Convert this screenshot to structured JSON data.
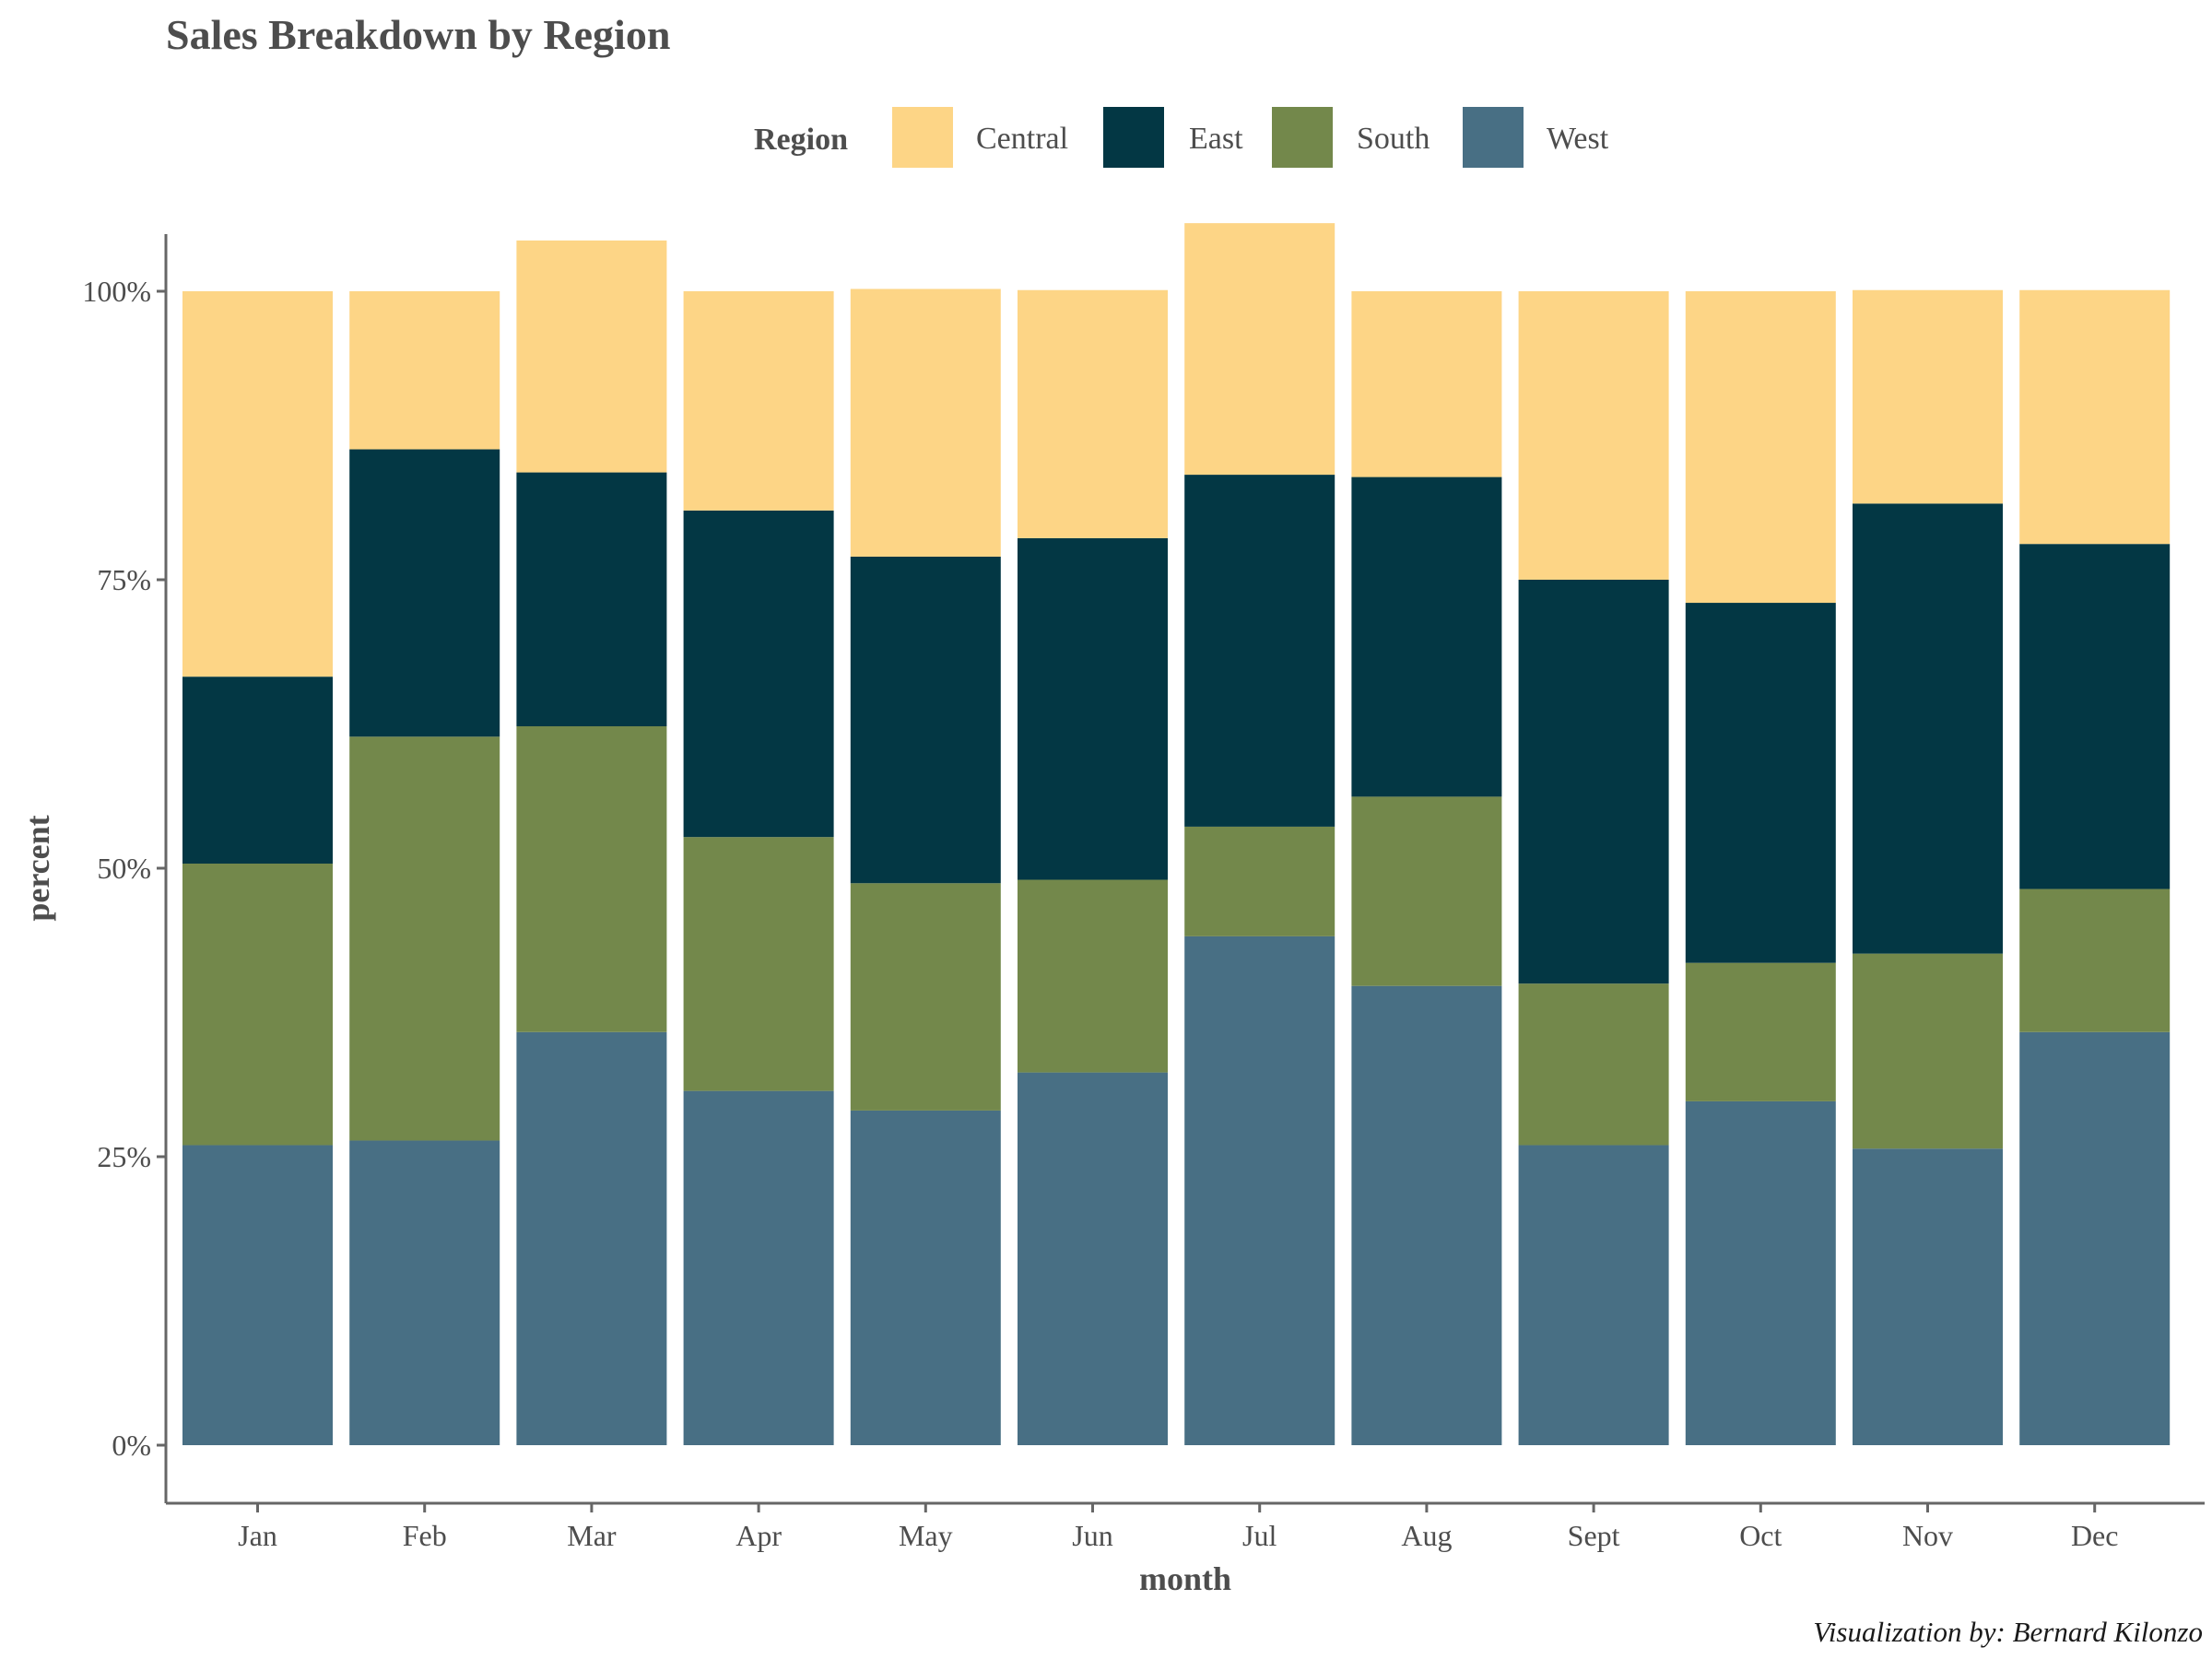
{
  "chart_data": {
    "type": "bar",
    "stacked": true,
    "normalized": true,
    "title": "Sales Breakdown by Region",
    "xlabel": "month",
    "ylabel": "percent",
    "caption": "Visualization by: Bernard Kilonzo",
    "legend": {
      "title": "Region",
      "position": "top"
    },
    "grid": false,
    "ylim": [
      0,
      1
    ],
    "yticks": [
      0,
      0.25,
      0.5,
      0.75,
      1.0
    ],
    "ytick_labels": [
      "0%",
      "25%",
      "50%",
      "75%",
      "100%"
    ],
    "categories": [
      "Jan",
      "Feb",
      "Mar",
      "Apr",
      "May",
      "Jun",
      "Jul",
      "Aug",
      "Sept",
      "Oct",
      "Nov",
      "Dec"
    ],
    "series": [
      {
        "name": "Central",
        "color": "#FDD586",
        "values": [
          0.334,
          0.137,
          0.201,
          0.19,
          0.232,
          0.215,
          0.218,
          0.161,
          0.25,
          0.27,
          0.185,
          0.22
        ]
      },
      {
        "name": "East",
        "color": "#033744",
        "values": [
          0.162,
          0.249,
          0.22,
          0.283,
          0.283,
          0.296,
          0.305,
          0.277,
          0.35,
          0.312,
          0.39,
          0.299
        ]
      },
      {
        "name": "South",
        "color": "#73884B",
        "values": [
          0.244,
          0.35,
          0.265,
          0.22,
          0.197,
          0.167,
          0.095,
          0.164,
          0.14,
          0.12,
          0.169,
          0.124
        ]
      },
      {
        "name": "West",
        "color": "#486F84",
        "values": [
          0.26,
          0.264,
          0.358,
          0.307,
          0.29,
          0.323,
          0.441,
          0.398,
          0.26,
          0.298,
          0.257,
          0.358
        ]
      }
    ]
  }
}
